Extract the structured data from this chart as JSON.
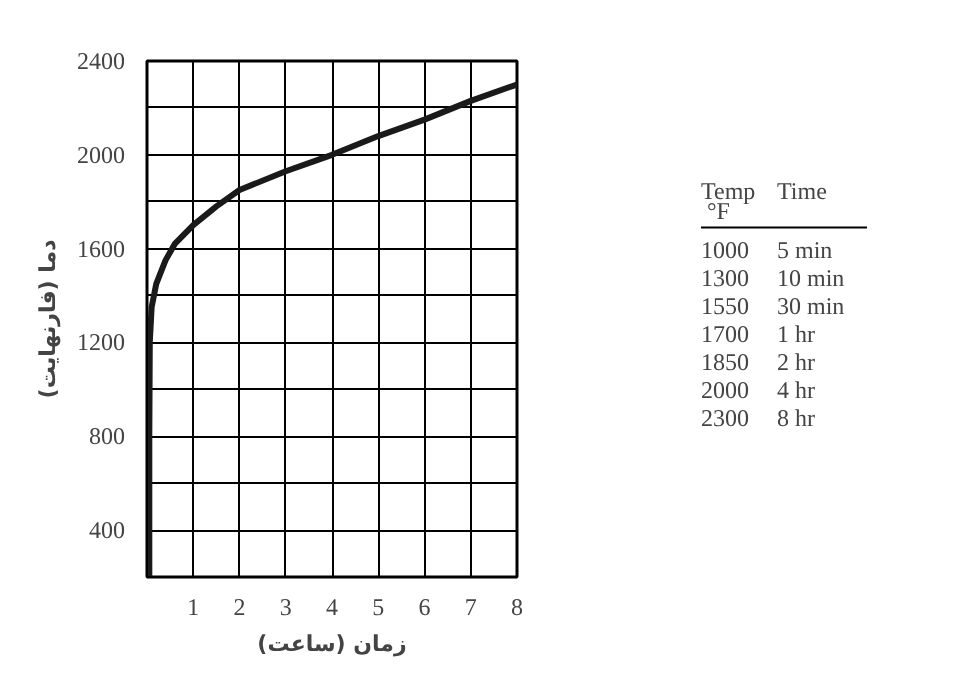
{
  "chart_data": [
    {
      "type": "line",
      "xlabel": "زمان (ساعت)",
      "ylabel": "دما (فارنهایت)",
      "x": [
        0.05,
        0.05,
        0.06,
        0.1,
        0.2,
        0.4,
        0.6,
        1,
        1.5,
        2,
        3,
        4,
        5,
        6,
        7,
        8
      ],
      "series": [
        {
          "color": "#1a1a1a",
          "values": [
            200,
            800,
            1200,
            1350,
            1450,
            1550,
            1620,
            1700,
            1780,
            1850,
            1930,
            2000,
            2080,
            2150,
            2230,
            2300
          ]
        }
      ],
      "xlim": [
        0,
        8
      ],
      "ylim": [
        200,
        2400
      ],
      "xticks": [
        1,
        2,
        3,
        4,
        5,
        6,
        7,
        8
      ],
      "yticks": [
        {
          "value": 200,
          "label": null
        },
        400,
        {
          "value": 600,
          "label": null
        },
        800,
        {
          "value": 1000,
          "label": null
        },
        1200,
        {
          "value": 1400,
          "label": null
        },
        1600,
        {
          "value": 1800,
          "label": null
        },
        2000,
        {
          "value": 2200,
          "label": null
        },
        2400
      ],
      "grid": true,
      "marker": "none",
      "line_style": "solid"
    },
    {
      "type": "other",
      "annotations": [
        "Temp",
        "°F",
        "Time",
        "1000",
        "5 min",
        "1300",
        "10 min",
        "1550",
        "30 min",
        "1700",
        "1 hr",
        "1850",
        "2 hr",
        "2000",
        "4 hr",
        "2300",
        "8 hr"
      ]
    }
  ]
}
